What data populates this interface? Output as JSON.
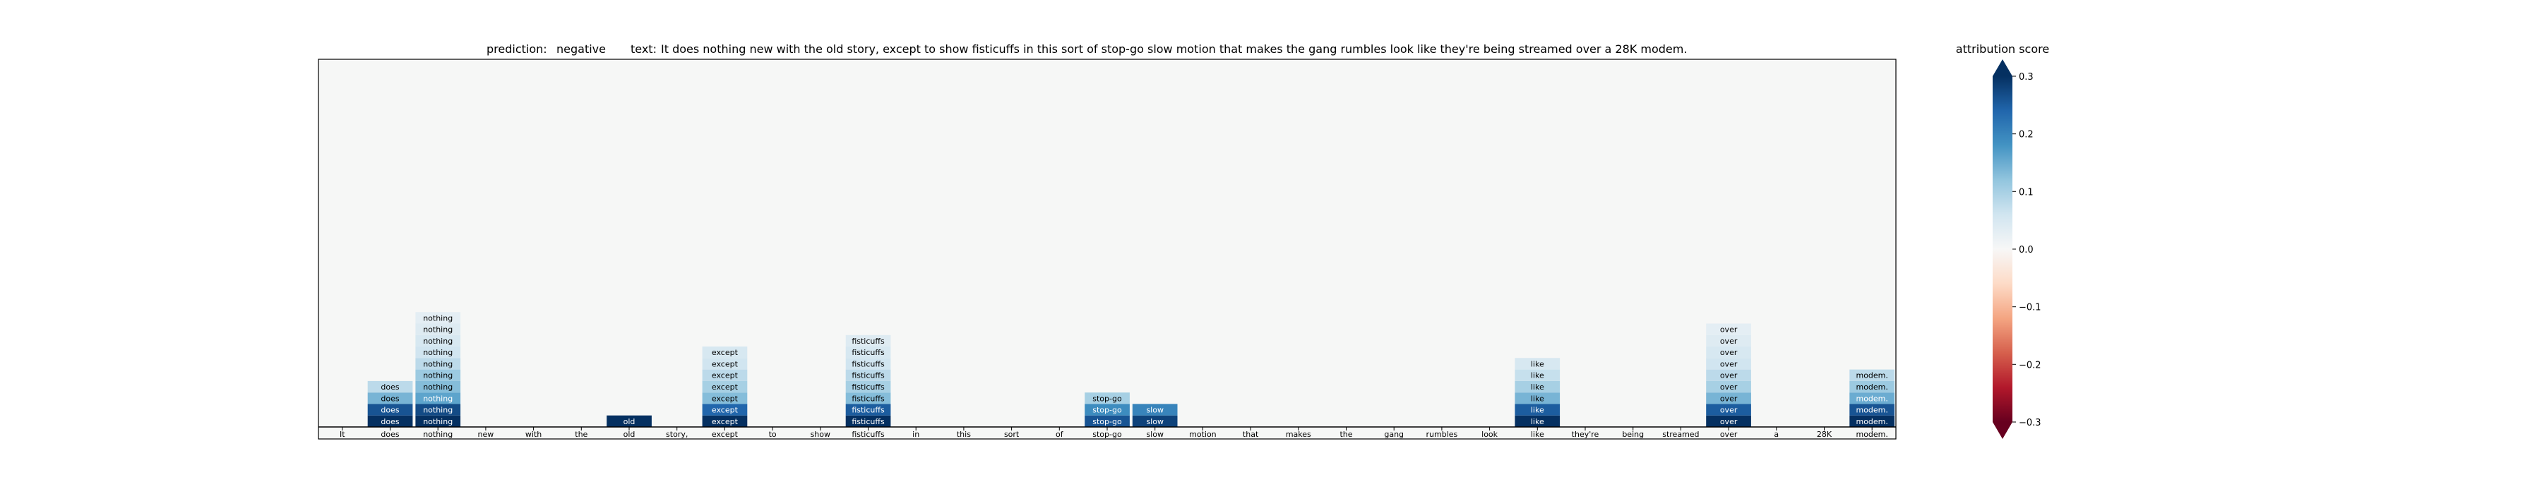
{
  "chart_data": {
    "type": "heatmap",
    "title": {
      "prediction_label": "prediction:",
      "prediction_value": "negative",
      "text_label": "text:",
      "text_value": "It does nothing new with the old story, except to show fisticuffs in this sort of stop-go slow motion that makes the gang rumbles look like they're being streamed over a 28K modem."
    },
    "tokens": [
      "It",
      "does",
      "nothing",
      "new",
      "with",
      "the",
      "old",
      "story,",
      "except",
      "to",
      "show",
      "fisticuffs",
      "in",
      "this",
      "sort",
      "of",
      "stop-go",
      "slow",
      "motion",
      "that",
      "makes",
      "the",
      "gang",
      "rumbles",
      "look",
      "like",
      "they're",
      "being",
      "streamed",
      "over",
      "a",
      "28K",
      "modem."
    ],
    "rows": 32,
    "cells": [
      {
        "token": 1,
        "scores": [
          0.32,
          0.26,
          0.14,
          0.08
        ]
      },
      {
        "token": 2,
        "scores": [
          0.34,
          0.27,
          0.16,
          0.13,
          0.11,
          0.08,
          0.06,
          0.05,
          0.04,
          0.03
        ]
      },
      {
        "token": 6,
        "scores": [
          0.31
        ]
      },
      {
        "token": 8,
        "scores": [
          0.33,
          0.24,
          0.13,
          0.1,
          0.08,
          0.06,
          0.05
        ]
      },
      {
        "token": 11,
        "scores": [
          0.33,
          0.25,
          0.13,
          0.1,
          0.08,
          0.06,
          0.05,
          0.04
        ]
      },
      {
        "token": 16,
        "scores": [
          0.26,
          0.19,
          0.1
        ]
      },
      {
        "token": 17,
        "scores": [
          0.28,
          0.2
        ]
      },
      {
        "token": 25,
        "scores": [
          0.33,
          0.25,
          0.14,
          0.1,
          0.07,
          0.05
        ]
      },
      {
        "token": 29,
        "scores": [
          0.33,
          0.25,
          0.14,
          0.1,
          0.08,
          0.06,
          0.05,
          0.04,
          0.03
        ]
      },
      {
        "token": 32,
        "scores": [
          0.33,
          0.26,
          0.15,
          0.11,
          0.08
        ]
      }
    ],
    "colorbar": {
      "label": "attribution score",
      "min": -0.3,
      "max": 0.3,
      "ticks": [
        {
          "value": 0.3,
          "label": "0.3"
        },
        {
          "value": 0.2,
          "label": "0.2"
        },
        {
          "value": 0.1,
          "label": "0.1"
        },
        {
          "value": 0.0,
          "label": "0.0"
        },
        {
          "value": -0.1,
          "label": "−0.1"
        },
        {
          "value": -0.2,
          "label": "−0.2"
        },
        {
          "value": -0.3,
          "label": "−0.3"
        }
      ],
      "extend": "both",
      "colormap": "RdBu"
    },
    "colors": {
      "background": "#f6f7f6",
      "dark_text": "#000000",
      "light_text": "#ffffff"
    }
  }
}
